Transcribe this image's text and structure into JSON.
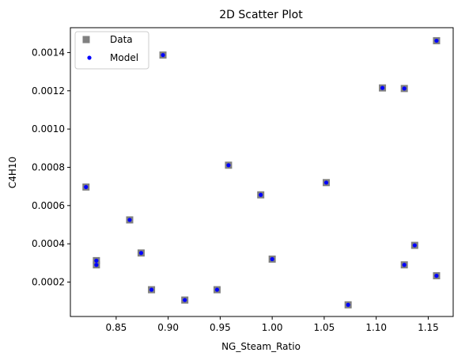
{
  "chart_data": {
    "type": "scatter",
    "title": "2D Scatter Plot",
    "xlabel": "NG_Steam_Ratio",
    "ylabel": "C4H10",
    "xlim": [
      0.806,
      1.174
    ],
    "ylim": [
      2e-05,
      0.00153
    ],
    "x_ticks": [
      0.85,
      0.9,
      0.95,
      1.0,
      1.05,
      1.1,
      1.15
    ],
    "x_tick_labels": [
      "0.85",
      "0.90",
      "0.95",
      "1.00",
      "1.05",
      "1.10",
      "1.15"
    ],
    "y_ticks": [
      0.0002,
      0.0004,
      0.0006,
      0.0008,
      0.001,
      0.0012,
      0.0014
    ],
    "y_tick_labels": [
      "0.0002",
      "0.0004",
      "0.0006",
      "0.0008",
      "0.0010",
      "0.0012",
      "0.0014"
    ],
    "grid": false,
    "legend_position": "upper-left",
    "series": [
      {
        "name": "Data",
        "marker": "square",
        "color": "#808080",
        "points": [
          [
            0.821,
            0.000697
          ],
          [
            0.831,
            0.000312
          ],
          [
            0.831,
            0.00029
          ],
          [
            0.863,
            0.000525
          ],
          [
            0.874,
            0.000352
          ],
          [
            0.884,
            0.00016
          ],
          [
            0.895,
            0.001387
          ],
          [
            0.916,
            0.000106
          ],
          [
            0.947,
            0.00016
          ],
          [
            0.958,
            0.000811
          ],
          [
            0.989,
            0.000656
          ],
          [
            1.0,
            0.00032
          ],
          [
            1.052,
            0.00072
          ],
          [
            1.073,
            8.1e-05
          ],
          [
            1.106,
            0.001215
          ],
          [
            1.127,
            0.001212
          ],
          [
            1.127,
            0.00029
          ],
          [
            1.137,
            0.000392
          ],
          [
            1.158,
            0.001462
          ],
          [
            1.158,
            0.000233
          ]
        ]
      },
      {
        "name": "Model",
        "marker": "circle",
        "color": "#0000ff",
        "points": [
          [
            0.821,
            0.000697
          ],
          [
            0.831,
            0.000312
          ],
          [
            0.831,
            0.00029
          ],
          [
            0.863,
            0.000525
          ],
          [
            0.874,
            0.000352
          ],
          [
            0.884,
            0.00016
          ],
          [
            0.895,
            0.001387
          ],
          [
            0.916,
            0.000106
          ],
          [
            0.947,
            0.00016
          ],
          [
            0.958,
            0.000811
          ],
          [
            0.989,
            0.000656
          ],
          [
            1.0,
            0.00032
          ],
          [
            1.052,
            0.00072
          ],
          [
            1.073,
            8.1e-05
          ],
          [
            1.106,
            0.001215
          ],
          [
            1.127,
            0.001212
          ],
          [
            1.127,
            0.00029
          ],
          [
            1.137,
            0.000392
          ],
          [
            1.158,
            0.001462
          ],
          [
            1.158,
            0.000233
          ]
        ]
      }
    ]
  }
}
